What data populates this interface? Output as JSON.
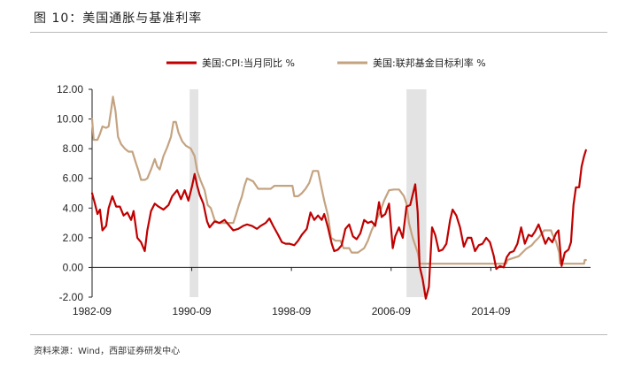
{
  "figure": {
    "title": "图 10：美国通胀与基准利率",
    "source": "资料来源：Wind，西部证券研发中心"
  },
  "chart_data": {
    "type": "line",
    "title": "",
    "xlabel": "",
    "ylabel": "",
    "x_ticks": [
      "1982-09",
      "1990-09",
      "1998-09",
      "2006-09",
      "2014-09"
    ],
    "y_ticks": [
      "12.00",
      "10.00",
      "8.00",
      "6.00",
      "4.00",
      "2.00",
      "0.00",
      "-2.00"
    ],
    "ylim": [
      -2,
      12
    ],
    "xlim": [
      1982.67,
      2022.67
    ],
    "grid": false,
    "legend_position": "top",
    "recessions": [
      [
        1990.5,
        1991.2
      ],
      [
        2007.9,
        2009.5
      ]
    ],
    "series": [
      {
        "name": "美国:CPI:当月同比 %",
        "color": "#c00000",
        "points": [
          [
            1982.67,
            5.0
          ],
          [
            1982.9,
            4.3
          ],
          [
            1983.1,
            3.6
          ],
          [
            1983.3,
            3.9
          ],
          [
            1983.5,
            2.5
          ],
          [
            1983.8,
            2.8
          ],
          [
            1984.0,
            4.0
          ],
          [
            1984.3,
            4.8
          ],
          [
            1984.6,
            4.1
          ],
          [
            1984.9,
            4.1
          ],
          [
            1985.2,
            3.5
          ],
          [
            1985.5,
            3.7
          ],
          [
            1985.8,
            3.2
          ],
          [
            1986.0,
            3.8
          ],
          [
            1986.3,
            2.0
          ],
          [
            1986.6,
            1.7
          ],
          [
            1986.9,
            1.1
          ],
          [
            1987.1,
            2.5
          ],
          [
            1987.4,
            3.8
          ],
          [
            1987.7,
            4.3
          ],
          [
            1988.0,
            4.1
          ],
          [
            1988.4,
            3.9
          ],
          [
            1988.8,
            4.2
          ],
          [
            1989.1,
            4.8
          ],
          [
            1989.5,
            5.2
          ],
          [
            1989.8,
            4.6
          ],
          [
            1990.1,
            5.2
          ],
          [
            1990.4,
            4.5
          ],
          [
            1990.7,
            5.5
          ],
          [
            1990.9,
            6.3
          ],
          [
            1991.1,
            5.5
          ],
          [
            1991.3,
            4.9
          ],
          [
            1991.6,
            4.3
          ],
          [
            1991.9,
            3.1
          ],
          [
            1992.1,
            2.7
          ],
          [
            1992.5,
            3.1
          ],
          [
            1992.9,
            3.0
          ],
          [
            1993.3,
            3.2
          ],
          [
            1993.7,
            2.8
          ],
          [
            1994.0,
            2.5
          ],
          [
            1994.4,
            2.6
          ],
          [
            1994.8,
            2.8
          ],
          [
            1995.1,
            2.9
          ],
          [
            1995.5,
            2.8
          ],
          [
            1995.9,
            2.6
          ],
          [
            1996.2,
            2.8
          ],
          [
            1996.6,
            3.0
          ],
          [
            1996.9,
            3.3
          ],
          [
            1997.2,
            2.8
          ],
          [
            1997.6,
            2.2
          ],
          [
            1997.9,
            1.7
          ],
          [
            1998.2,
            1.6
          ],
          [
            1998.5,
            1.6
          ],
          [
            1998.9,
            1.5
          ],
          [
            1999.2,
            1.8
          ],
          [
            1999.5,
            2.2
          ],
          [
            1999.9,
            2.6
          ],
          [
            2000.2,
            3.7
          ],
          [
            2000.5,
            3.2
          ],
          [
            2000.8,
            3.5
          ],
          [
            2001.1,
            3.2
          ],
          [
            2001.3,
            3.6
          ],
          [
            2001.6,
            2.7
          ],
          [
            2001.9,
            1.6
          ],
          [
            2002.1,
            1.1
          ],
          [
            2002.4,
            1.2
          ],
          [
            2002.7,
            1.5
          ],
          [
            2003.0,
            2.6
          ],
          [
            2003.3,
            2.9
          ],
          [
            2003.6,
            2.1
          ],
          [
            2003.9,
            1.9
          ],
          [
            2004.2,
            2.3
          ],
          [
            2004.5,
            3.2
          ],
          [
            2004.8,
            3.0
          ],
          [
            2005.1,
            3.1
          ],
          [
            2005.4,
            2.8
          ],
          [
            2005.7,
            4.4
          ],
          [
            2005.9,
            3.4
          ],
          [
            2006.2,
            3.6
          ],
          [
            2006.5,
            4.3
          ],
          [
            2006.8,
            1.3
          ],
          [
            2007.0,
            2.1
          ],
          [
            2007.3,
            2.7
          ],
          [
            2007.6,
            2.0
          ],
          [
            2007.9,
            4.1
          ],
          [
            2008.2,
            4.2
          ],
          [
            2008.4,
            4.9
          ],
          [
            2008.6,
            5.6
          ],
          [
            2008.8,
            3.7
          ],
          [
            2008.95,
            0.1
          ],
          [
            2009.2,
            -0.8
          ],
          [
            2009.45,
            -2.1
          ],
          [
            2009.7,
            -1.3
          ],
          [
            2009.95,
            2.7
          ],
          [
            2010.2,
            2.2
          ],
          [
            2010.5,
            1.1
          ],
          [
            2010.8,
            1.2
          ],
          [
            2011.1,
            1.6
          ],
          [
            2011.4,
            3.2
          ],
          [
            2011.6,
            3.9
          ],
          [
            2011.9,
            3.5
          ],
          [
            2012.2,
            2.7
          ],
          [
            2012.5,
            1.4
          ],
          [
            2012.8,
            2.0
          ],
          [
            2013.1,
            2.0
          ],
          [
            2013.4,
            1.1
          ],
          [
            2013.7,
            1.5
          ],
          [
            2014.0,
            1.6
          ],
          [
            2014.3,
            2.0
          ],
          [
            2014.6,
            1.7
          ],
          [
            2014.9,
            0.8
          ],
          [
            2015.1,
            -0.1
          ],
          [
            2015.4,
            0.1
          ],
          [
            2015.7,
            0.0
          ],
          [
            2015.95,
            0.7
          ],
          [
            2016.2,
            1.0
          ],
          [
            2016.5,
            1.1
          ],
          [
            2016.8,
            1.6
          ],
          [
            2017.1,
            2.7
          ],
          [
            2017.4,
            1.6
          ],
          [
            2017.7,
            2.2
          ],
          [
            2017.95,
            2.1
          ],
          [
            2018.2,
            2.4
          ],
          [
            2018.5,
            2.9
          ],
          [
            2018.8,
            2.2
          ],
          [
            2019.05,
            1.6
          ],
          [
            2019.3,
            2.0
          ],
          [
            2019.6,
            1.7
          ],
          [
            2019.9,
            2.3
          ],
          [
            2020.1,
            2.5
          ],
          [
            2020.35,
            0.1
          ],
          [
            2020.6,
            1.0
          ],
          [
            2020.9,
            1.2
          ],
          [
            2021.1,
            1.7
          ],
          [
            2021.3,
            4.2
          ],
          [
            2021.5,
            5.4
          ],
          [
            2021.75,
            5.4
          ],
          [
            2021.95,
            6.8
          ],
          [
            2022.15,
            7.5
          ],
          [
            2022.3,
            7.9
          ]
        ]
      },
      {
        "name": "美国:联邦基金目标利率 %",
        "color": "#c4a381",
        "points": [
          [
            1982.67,
            10.0
          ],
          [
            1982.8,
            8.6
          ],
          [
            1983.1,
            8.6
          ],
          [
            1983.3,
            9.0
          ],
          [
            1983.5,
            9.5
          ],
          [
            1983.8,
            9.4
          ],
          [
            1984.0,
            9.5
          ],
          [
            1984.2,
            10.6
          ],
          [
            1984.35,
            11.5
          ],
          [
            1984.55,
            10.5
          ],
          [
            1984.75,
            8.8
          ],
          [
            1985.0,
            8.3
          ],
          [
            1985.3,
            8.0
          ],
          [
            1985.6,
            7.8
          ],
          [
            1985.9,
            7.8
          ],
          [
            1986.2,
            7.0
          ],
          [
            1986.4,
            6.5
          ],
          [
            1986.6,
            5.9
          ],
          [
            1986.9,
            5.9
          ],
          [
            1987.1,
            6.0
          ],
          [
            1987.4,
            6.6
          ],
          [
            1987.7,
            7.3
          ],
          [
            1987.9,
            6.8
          ],
          [
            1988.1,
            6.6
          ],
          [
            1988.4,
            7.5
          ],
          [
            1988.7,
            8.1
          ],
          [
            1989.0,
            8.8
          ],
          [
            1989.2,
            9.8
          ],
          [
            1989.4,
            9.8
          ],
          [
            1989.6,
            9.1
          ],
          [
            1989.9,
            8.5
          ],
          [
            1990.2,
            8.2
          ],
          [
            1990.6,
            8.0
          ],
          [
            1990.9,
            7.5
          ],
          [
            1991.1,
            6.5
          ],
          [
            1991.4,
            5.8
          ],
          [
            1991.7,
            5.2
          ],
          [
            1991.95,
            4.2
          ],
          [
            1992.2,
            4.0
          ],
          [
            1992.5,
            3.2
          ],
          [
            1992.8,
            3.0
          ],
          [
            1993.2,
            3.0
          ],
          [
            1993.6,
            3.0
          ],
          [
            1994.0,
            3.0
          ],
          [
            1994.2,
            3.5
          ],
          [
            1994.45,
            4.2
          ],
          [
            1994.7,
            4.8
          ],
          [
            1994.9,
            5.5
          ],
          [
            1995.1,
            6.0
          ],
          [
            1995.6,
            5.8
          ],
          [
            1996.0,
            5.3
          ],
          [
            1996.5,
            5.3
          ],
          [
            1997.0,
            5.3
          ],
          [
            1997.3,
            5.5
          ],
          [
            1997.8,
            5.5
          ],
          [
            1998.3,
            5.5
          ],
          [
            1998.75,
            5.5
          ],
          [
            1998.9,
            4.8
          ],
          [
            1999.2,
            4.8
          ],
          [
            1999.5,
            5.0
          ],
          [
            1999.8,
            5.3
          ],
          [
            2000.1,
            5.7
          ],
          [
            2000.4,
            6.5
          ],
          [
            2000.8,
            6.5
          ],
          [
            2001.05,
            5.5
          ],
          [
            2001.3,
            4.5
          ],
          [
            2001.6,
            3.5
          ],
          [
            2001.85,
            2.0
          ],
          [
            2002.2,
            1.8
          ],
          [
            2002.6,
            1.8
          ],
          [
            2002.85,
            1.3
          ],
          [
            2003.3,
            1.3
          ],
          [
            2003.5,
            1.0
          ],
          [
            2004.0,
            1.0
          ],
          [
            2004.5,
            1.3
          ],
          [
            2004.8,
            1.8
          ],
          [
            2005.1,
            2.5
          ],
          [
            2005.5,
            3.2
          ],
          [
            2005.8,
            3.8
          ],
          [
            2006.1,
            4.5
          ],
          [
            2006.5,
            5.2
          ],
          [
            2006.9,
            5.25
          ],
          [
            2007.3,
            5.25
          ],
          [
            2007.7,
            4.8
          ],
          [
            2007.9,
            4.3
          ],
          [
            2008.1,
            3.0
          ],
          [
            2008.4,
            2.0
          ],
          [
            2008.8,
            1.0
          ],
          [
            2008.97,
            0.25
          ],
          [
            2010.0,
            0.25
          ],
          [
            2012.0,
            0.25
          ],
          [
            2014.0,
            0.25
          ],
          [
            2015.9,
            0.25
          ],
          [
            2016.0,
            0.5
          ],
          [
            2016.9,
            0.75
          ],
          [
            2017.2,
            1.0
          ],
          [
            2017.5,
            1.25
          ],
          [
            2017.95,
            1.5
          ],
          [
            2018.2,
            1.75
          ],
          [
            2018.5,
            2.0
          ],
          [
            2018.95,
            2.5
          ],
          [
            2019.5,
            2.5
          ],
          [
            2019.6,
            2.25
          ],
          [
            2019.75,
            2.0
          ],
          [
            2019.9,
            1.75
          ],
          [
            2020.15,
            1.0
          ],
          [
            2020.22,
            0.25
          ],
          [
            2021.0,
            0.25
          ],
          [
            2022.15,
            0.25
          ],
          [
            2022.2,
            0.5
          ],
          [
            2022.3,
            0.5
          ]
        ]
      }
    ]
  }
}
